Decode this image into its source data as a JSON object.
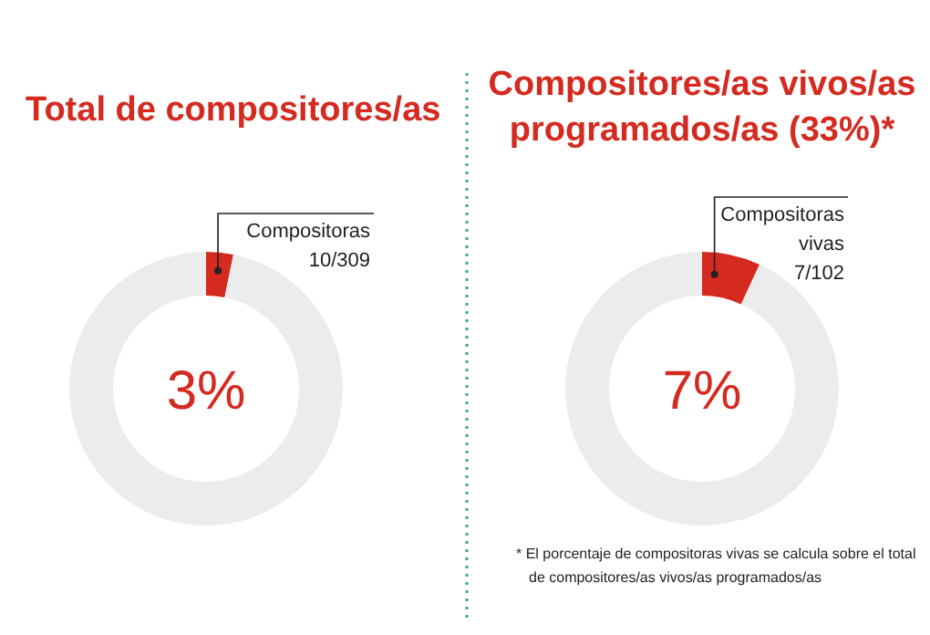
{
  "chart_data": [
    {
      "type": "donut",
      "title": "Total de compositores/as",
      "categories": [
        null,
        null
      ],
      "values": [
        3.2,
        96.8
      ],
      "colors": [
        "#d42a20",
        "#ececec"
      ],
      "annotations": [
        "Compositoras\n10/309",
        "3%"
      ]
    },
    {
      "type": "donut",
      "title": "Compositores/as vivos/as\nprogramados/as (33%)*",
      "categories": [
        null,
        null
      ],
      "values": [
        6.9,
        93.1
      ],
      "colors": [
        "#d42a20",
        "#ececec"
      ],
      "annotations": [
        "Compositoras\nvivas\n7/102",
        "7%",
        "* El porcentaje de compositoras vivas se calcula sobre el total\nde compositores/as vivos/as programados/as"
      ]
    }
  ]
}
